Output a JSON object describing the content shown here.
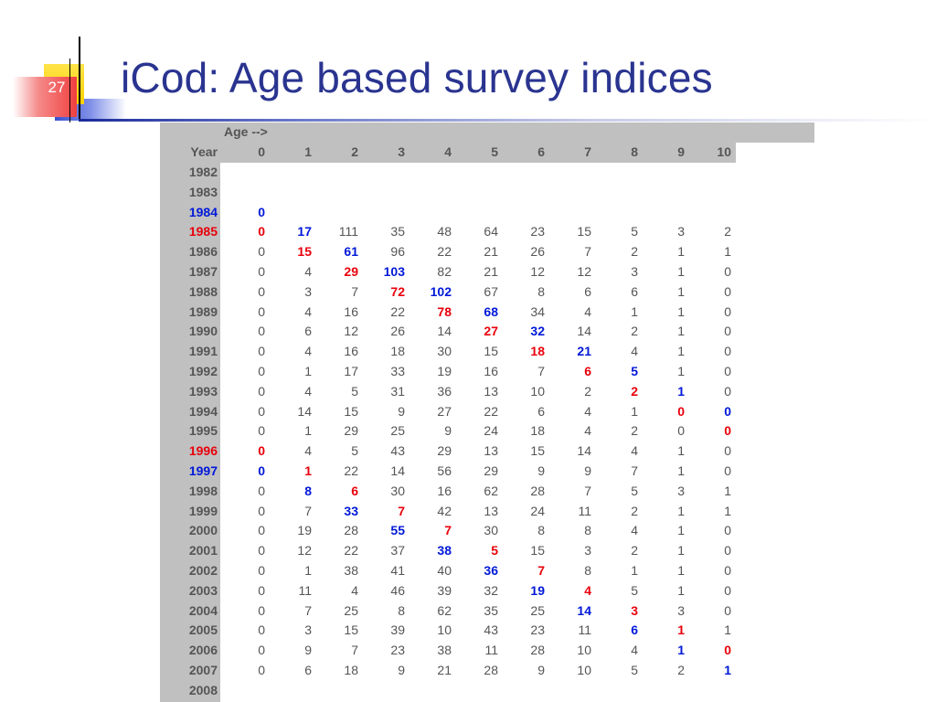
{
  "slide": {
    "number": "27",
    "title": "iCod: Age based survey indices"
  },
  "table": {
    "age_label": "Age -->",
    "year_label": "Year",
    "ages": [
      "0",
      "1",
      "2",
      "3",
      "4",
      "5",
      "6",
      "7",
      "8",
      "9",
      "10"
    ],
    "rows": [
      {
        "year": "1982",
        "values": [
          "",
          "",
          "",
          "",
          "",
          "",
          "",
          "",
          "",
          "",
          ""
        ]
      },
      {
        "year": "1983",
        "values": [
          "",
          "",
          "",
          "",
          "",
          "",
          "",
          "",
          "",
          "",
          ""
        ]
      },
      {
        "year": "1984",
        "values": [
          "0",
          "",
          "",
          "",
          "",
          "",
          "",
          "",
          "",
          "",
          ""
        ]
      },
      {
        "year": "1985",
        "values": [
          "0",
          "17",
          "111",
          "35",
          "48",
          "64",
          "23",
          "15",
          "5",
          "3",
          "2"
        ]
      },
      {
        "year": "1986",
        "values": [
          "0",
          "15",
          "61",
          "96",
          "22",
          "21",
          "26",
          "7",
          "2",
          "1",
          "1"
        ]
      },
      {
        "year": "1987",
        "values": [
          "0",
          "4",
          "29",
          "103",
          "82",
          "21",
          "12",
          "12",
          "3",
          "1",
          "0"
        ]
      },
      {
        "year": "1988",
        "values": [
          "0",
          "3",
          "7",
          "72",
          "102",
          "67",
          "8",
          "6",
          "6",
          "1",
          "0"
        ]
      },
      {
        "year": "1989",
        "values": [
          "0",
          "4",
          "16",
          "22",
          "78",
          "68",
          "34",
          "4",
          "1",
          "1",
          "0"
        ]
      },
      {
        "year": "1990",
        "values": [
          "0",
          "6",
          "12",
          "26",
          "14",
          "27",
          "32",
          "14",
          "2",
          "1",
          "0"
        ]
      },
      {
        "year": "1991",
        "values": [
          "0",
          "4",
          "16",
          "18",
          "30",
          "15",
          "18",
          "21",
          "4",
          "1",
          "0"
        ]
      },
      {
        "year": "1992",
        "values": [
          "0",
          "1",
          "17",
          "33",
          "19",
          "16",
          "7",
          "6",
          "5",
          "1",
          "0"
        ]
      },
      {
        "year": "1993",
        "values": [
          "0",
          "4",
          "5",
          "31",
          "36",
          "13",
          "10",
          "2",
          "2",
          "1",
          "0"
        ]
      },
      {
        "year": "1994",
        "values": [
          "0",
          "14",
          "15",
          "9",
          "27",
          "22",
          "6",
          "4",
          "1",
          "0",
          "0"
        ]
      },
      {
        "year": "1995",
        "values": [
          "0",
          "1",
          "29",
          "25",
          "9",
          "24",
          "18",
          "4",
          "2",
          "0",
          "0"
        ]
      },
      {
        "year": "1996",
        "values": [
          "0",
          "4",
          "5",
          "43",
          "29",
          "13",
          "15",
          "14",
          "4",
          "1",
          "0"
        ]
      },
      {
        "year": "1997",
        "values": [
          "0",
          "1",
          "22",
          "14",
          "56",
          "29",
          "9",
          "9",
          "7",
          "1",
          "0"
        ]
      },
      {
        "year": "1998",
        "values": [
          "0",
          "8",
          "6",
          "30",
          "16",
          "62",
          "28",
          "7",
          "5",
          "3",
          "1"
        ]
      },
      {
        "year": "1999",
        "values": [
          "0",
          "7",
          "33",
          "7",
          "42",
          "13",
          "24",
          "11",
          "2",
          "1",
          "1"
        ]
      },
      {
        "year": "2000",
        "values": [
          "0",
          "19",
          "28",
          "55",
          "7",
          "30",
          "8",
          "8",
          "4",
          "1",
          "0"
        ]
      },
      {
        "year": "2001",
        "values": [
          "0",
          "12",
          "22",
          "37",
          "38",
          "5",
          "15",
          "3",
          "2",
          "1",
          "0"
        ]
      },
      {
        "year": "2002",
        "values": [
          "0",
          "1",
          "38",
          "41",
          "40",
          "36",
          "7",
          "8",
          "1",
          "1",
          "0"
        ]
      },
      {
        "year": "2003",
        "values": [
          "0",
          "11",
          "4",
          "46",
          "39",
          "32",
          "19",
          "4",
          "5",
          "1",
          "0"
        ]
      },
      {
        "year": "2004",
        "values": [
          "0",
          "7",
          "25",
          "8",
          "62",
          "35",
          "25",
          "14",
          "3",
          "3",
          "0"
        ]
      },
      {
        "year": "2005",
        "values": [
          "0",
          "3",
          "15",
          "39",
          "10",
          "43",
          "23",
          "11",
          "6",
          "1",
          "1"
        ]
      },
      {
        "year": "2006",
        "values": [
          "0",
          "9",
          "7",
          "23",
          "38",
          "11",
          "28",
          "10",
          "4",
          "1",
          "0"
        ]
      },
      {
        "year": "2007",
        "values": [
          "0",
          "6",
          "18",
          "9",
          "21",
          "28",
          "9",
          "10",
          "5",
          "2",
          "1"
        ]
      },
      {
        "year": "2008",
        "values": [
          "",
          "",
          "",
          "",
          "",
          "",
          "",
          "",
          "",
          "",
          ""
        ]
      }
    ],
    "highlights": {
      "red_years": [
        "1985",
        "1996"
      ],
      "blue_years": [
        "1984",
        "1997"
      ],
      "red_cells": [
        [
          3,
          0
        ],
        [
          4,
          1
        ],
        [
          5,
          2
        ],
        [
          6,
          3
        ],
        [
          7,
          4
        ],
        [
          8,
          5
        ],
        [
          9,
          6
        ],
        [
          10,
          7
        ],
        [
          11,
          8
        ],
        [
          12,
          9
        ],
        [
          13,
          10
        ],
        [
          14,
          0
        ],
        [
          15,
          1
        ],
        [
          16,
          2
        ],
        [
          17,
          3
        ],
        [
          18,
          4
        ],
        [
          19,
          5
        ],
        [
          20,
          6
        ],
        [
          21,
          7
        ],
        [
          22,
          8
        ],
        [
          23,
          9
        ],
        [
          24,
          10
        ]
      ],
      "blue_cells": [
        [
          2,
          0
        ],
        [
          3,
          1
        ],
        [
          4,
          2
        ],
        [
          5,
          3
        ],
        [
          6,
          4
        ],
        [
          7,
          5
        ],
        [
          8,
          6
        ],
        [
          9,
          7
        ],
        [
          10,
          8
        ],
        [
          11,
          9
        ],
        [
          12,
          10
        ],
        [
          15,
          0
        ],
        [
          16,
          1
        ],
        [
          17,
          2
        ],
        [
          18,
          3
        ],
        [
          19,
          4
        ],
        [
          20,
          5
        ],
        [
          21,
          6
        ],
        [
          22,
          7
        ],
        [
          23,
          8
        ],
        [
          24,
          9
        ],
        [
          25,
          10
        ]
      ],
      "red_color": "#e8000b",
      "blue_color": "#0018d8"
    }
  }
}
